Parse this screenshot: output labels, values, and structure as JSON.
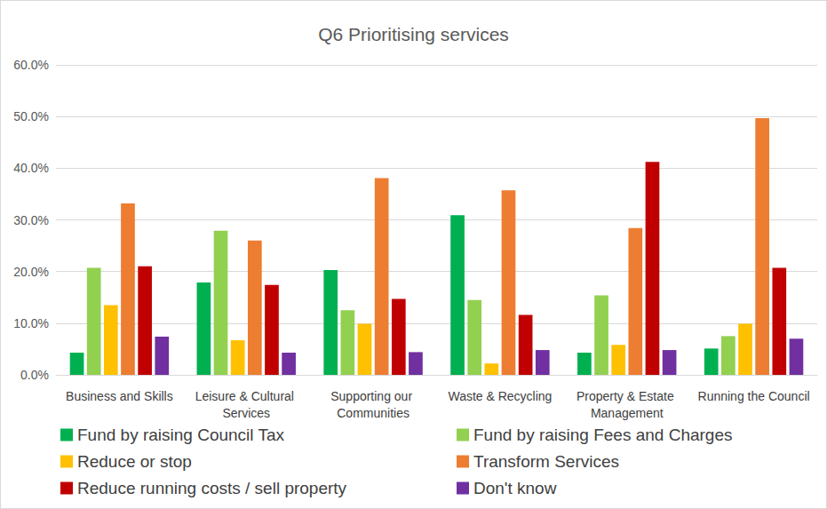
{
  "chart_data": {
    "type": "bar",
    "title": "Q6 Prioritising services",
    "categories": [
      "Business and Skills",
      "Leisure & Cultural Services",
      "Supporting our Communities",
      "Waste & Recycling",
      "Property & Estate Management",
      "Running the Council"
    ],
    "series": [
      {
        "name": "Fund by raising Council Tax",
        "color": "#00B050",
        "values": [
          4.3,
          17.9,
          20.3,
          30.9,
          4.3,
          5.1
        ]
      },
      {
        "name": "Fund by raising Fees and Charges",
        "color": "#92D050",
        "values": [
          20.7,
          27.9,
          12.5,
          14.5,
          15.4,
          7.5
        ]
      },
      {
        "name": "Reduce or stop",
        "color": "#FFC000",
        "values": [
          13.5,
          6.7,
          9.9,
          2.2,
          5.8,
          9.9
        ]
      },
      {
        "name": "Transform Services",
        "color": "#ED7D31",
        "values": [
          33.2,
          26.0,
          38.1,
          35.7,
          28.4,
          49.7
        ]
      },
      {
        "name": "Reduce running costs / sell property",
        "color": "#C00000",
        "values": [
          21.0,
          17.4,
          14.7,
          11.6,
          41.2,
          20.7
        ]
      },
      {
        "name": "Don't know",
        "color": "#7030A0",
        "values": [
          7.4,
          4.3,
          4.4,
          4.8,
          4.8,
          7.0
        ]
      }
    ],
    "ylim": [
      0,
      60
    ],
    "yticks": [
      {
        "value": 0,
        "label": "0.0%"
      },
      {
        "value": 10,
        "label": "10.0%"
      },
      {
        "value": 20,
        "label": "20.0%"
      },
      {
        "value": 30,
        "label": "30.0%"
      },
      {
        "value": 40,
        "label": "40.0%"
      },
      {
        "value": 50,
        "label": "50.0%"
      },
      {
        "value": 60,
        "label": "60.0%"
      }
    ],
    "grid": true,
    "legend": "bottom"
  }
}
